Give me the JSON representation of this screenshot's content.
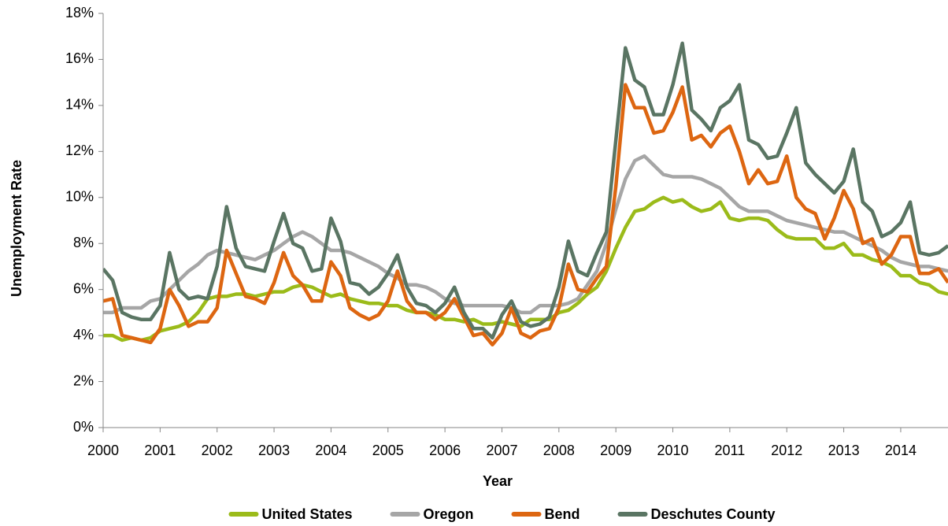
{
  "chart_data": {
    "type": "line",
    "x_label": "Year",
    "y_label": "Unemployment Rate",
    "x": [
      2000,
      2000.167,
      2000.333,
      2000.5,
      2000.667,
      2000.833,
      2001,
      2001.167,
      2001.333,
      2001.5,
      2001.667,
      2001.833,
      2002,
      2002.167,
      2002.333,
      2002.5,
      2002.667,
      2002.833,
      2003,
      2003.167,
      2003.333,
      2003.5,
      2003.667,
      2003.833,
      2004,
      2004.167,
      2004.333,
      2004.5,
      2004.667,
      2004.833,
      2005,
      2005.167,
      2005.333,
      2005.5,
      2005.667,
      2005.833,
      2006,
      2006.167,
      2006.333,
      2006.5,
      2006.667,
      2006.833,
      2007,
      2007.167,
      2007.333,
      2007.5,
      2007.667,
      2007.833,
      2008,
      2008.167,
      2008.333,
      2008.5,
      2008.667,
      2008.833,
      2009,
      2009.167,
      2009.333,
      2009.5,
      2009.667,
      2009.833,
      2010,
      2010.167,
      2010.333,
      2010.5,
      2010.667,
      2010.833,
      2011,
      2011.167,
      2011.333,
      2011.5,
      2011.667,
      2011.833,
      2012,
      2012.167,
      2012.333,
      2012.5,
      2012.667,
      2012.833,
      2013,
      2013.167,
      2013.333,
      2013.5,
      2013.667,
      2013.833,
      2014,
      2014.167,
      2014.333,
      2014.5,
      2014.667,
      2014.833
    ],
    "series": [
      {
        "name": "United States",
        "color": "#9bbb1a",
        "values": [
          4.0,
          4.0,
          3.8,
          3.9,
          3.8,
          3.9,
          4.2,
          4.3,
          4.4,
          4.6,
          5.0,
          5.6,
          5.7,
          5.7,
          5.8,
          5.8,
          5.7,
          5.8,
          5.9,
          5.9,
          6.1,
          6.2,
          6.1,
          5.9,
          5.7,
          5.8,
          5.6,
          5.5,
          5.4,
          5.4,
          5.3,
          5.3,
          5.1,
          5.0,
          5.0,
          4.9,
          4.7,
          4.7,
          4.6,
          4.7,
          4.5,
          4.5,
          4.6,
          4.5,
          4.4,
          4.7,
          4.7,
          4.7,
          5.0,
          5.1,
          5.4,
          5.8,
          6.1,
          6.8,
          7.8,
          8.7,
          9.4,
          9.5,
          9.8,
          10.0,
          9.8,
          9.9,
          9.6,
          9.4,
          9.5,
          9.8,
          9.1,
          9.0,
          9.1,
          9.1,
          9.0,
          8.6,
          8.3,
          8.2,
          8.2,
          8.2,
          7.8,
          7.8,
          8.0,
          7.5,
          7.5,
          7.3,
          7.2,
          7.0,
          6.6,
          6.6,
          6.3,
          6.2,
          5.9,
          5.8
        ]
      },
      {
        "name": "Oregon",
        "color": "#a6a6a6",
        "values": [
          5.0,
          5.0,
          5.2,
          5.2,
          5.2,
          5.5,
          5.6,
          6.0,
          6.4,
          6.8,
          7.1,
          7.5,
          7.7,
          7.6,
          7.5,
          7.4,
          7.3,
          7.5,
          7.7,
          8.0,
          8.3,
          8.5,
          8.3,
          8.0,
          7.7,
          7.7,
          7.6,
          7.4,
          7.2,
          7.0,
          6.7,
          6.5,
          6.2,
          6.2,
          6.1,
          5.9,
          5.6,
          5.4,
          5.3,
          5.3,
          5.3,
          5.3,
          5.3,
          5.2,
          5.0,
          5.0,
          5.3,
          5.3,
          5.3,
          5.4,
          5.6,
          6.2,
          6.8,
          8.0,
          9.5,
          10.8,
          11.6,
          11.8,
          11.4,
          11.0,
          10.9,
          10.9,
          10.9,
          10.8,
          10.6,
          10.4,
          10.0,
          9.6,
          9.4,
          9.4,
          9.4,
          9.2,
          9.0,
          8.9,
          8.8,
          8.7,
          8.6,
          8.5,
          8.5,
          8.3,
          8.1,
          7.9,
          7.7,
          7.4,
          7.2,
          7.1,
          7.0,
          7.0,
          6.9,
          6.8
        ]
      },
      {
        "name": "Bend",
        "color": "#dd6611",
        "values": [
          5.5,
          5.6,
          4.0,
          3.9,
          3.8,
          3.7,
          4.3,
          6.0,
          5.3,
          4.4,
          4.6,
          4.6,
          5.2,
          7.7,
          6.7,
          5.7,
          5.6,
          5.4,
          6.3,
          7.6,
          6.6,
          6.2,
          5.5,
          5.5,
          7.2,
          6.6,
          5.2,
          4.9,
          4.7,
          4.9,
          5.5,
          6.8,
          5.5,
          5.0,
          5.0,
          4.7,
          5.0,
          5.6,
          4.8,
          4.0,
          4.1,
          3.6,
          4.1,
          5.2,
          4.1,
          3.9,
          4.2,
          4.3,
          5.2,
          7.1,
          6.0,
          5.9,
          6.5,
          7.0,
          10.5,
          14.9,
          13.9,
          13.9,
          12.8,
          12.9,
          13.7,
          14.8,
          12.5,
          12.7,
          12.2,
          12.8,
          13.1,
          12.0,
          10.6,
          11.2,
          10.6,
          10.7,
          11.8,
          10.0,
          9.5,
          9.3,
          8.2,
          9.1,
          10.3,
          9.5,
          8.0,
          8.2,
          7.1,
          7.5,
          8.3,
          8.3,
          6.7,
          6.7,
          6.9,
          6.3
        ]
      },
      {
        "name": "Deschutes County",
        "color": "#5a7563",
        "values": [
          6.9,
          6.4,
          5.0,
          4.8,
          4.7,
          4.7,
          5.3,
          7.6,
          6.0,
          5.6,
          5.7,
          5.6,
          7.0,
          9.6,
          7.8,
          7.0,
          6.9,
          6.8,
          8.1,
          9.3,
          8.0,
          7.8,
          6.8,
          6.9,
          9.1,
          8.1,
          6.3,
          6.2,
          5.8,
          6.1,
          6.7,
          7.5,
          6.1,
          5.4,
          5.3,
          5.0,
          5.4,
          6.1,
          5.0,
          4.3,
          4.3,
          3.9,
          4.9,
          5.5,
          4.6,
          4.4,
          4.5,
          4.8,
          6.1,
          8.1,
          6.8,
          6.6,
          7.6,
          8.5,
          12.5,
          16.5,
          15.1,
          14.8,
          13.6,
          13.6,
          14.9,
          16.7,
          13.8,
          13.4,
          12.9,
          13.9,
          14.2,
          14.9,
          12.5,
          12.3,
          11.7,
          11.8,
          12.8,
          13.9,
          11.5,
          11.0,
          10.6,
          10.2,
          10.7,
          12.1,
          9.8,
          9.4,
          8.3,
          8.5,
          8.9,
          9.8,
          7.6,
          7.5,
          7.6,
          7.9
        ]
      }
    ],
    "xlim": [
      2000,
      2014.83
    ],
    "xticks": [
      2000,
      2001,
      2002,
      2003,
      2004,
      2005,
      2006,
      2007,
      2008,
      2009,
      2010,
      2011,
      2012,
      2013,
      2014
    ],
    "ylim": [
      0,
      18
    ],
    "yticks": [
      {
        "value": 0,
        "label": "0%"
      },
      {
        "value": 2,
        "label": "2%"
      },
      {
        "value": 4,
        "label": "4%"
      },
      {
        "value": 6,
        "label": "6%"
      },
      {
        "value": 8,
        "label": "8%"
      },
      {
        "value": 10,
        "label": "10%"
      },
      {
        "value": 12,
        "label": "12%"
      },
      {
        "value": 14,
        "label": "14%"
      },
      {
        "value": 16,
        "label": "16%"
      },
      {
        "value": 18,
        "label": "18%"
      }
    ],
    "grid": false,
    "legend": "bottom"
  }
}
